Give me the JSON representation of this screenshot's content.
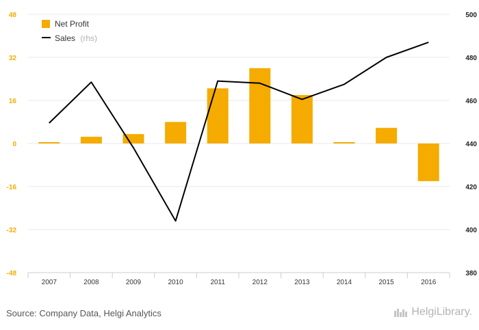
{
  "chart_data": {
    "type": "bar+line",
    "categories": [
      "2007",
      "2008",
      "2009",
      "2010",
      "2011",
      "2012",
      "2013",
      "2014",
      "2015",
      "2016"
    ],
    "series": [
      {
        "name": "Net Profit",
        "type": "bar",
        "axis": "left",
        "color": "#f5ab00",
        "values": [
          0.5,
          2.5,
          3.5,
          8.0,
          20.5,
          28.0,
          18.0,
          0.5,
          5.8,
          -14.0
        ]
      },
      {
        "name": "Sales",
        "type": "line",
        "axis": "right",
        "color": "#000000",
        "values": [
          449.5,
          468.5,
          438.0,
          404.0,
          469.0,
          468.0,
          460.5,
          467.5,
          480.0,
          487.0
        ]
      }
    ],
    "left_axis": {
      "min": -48,
      "max": 48,
      "ticks": [
        "48",
        "32",
        "16",
        "0",
        "-16",
        "-32",
        "-48"
      ],
      "tick_color": "#f5ab00"
    },
    "right_axis": {
      "min": 380,
      "max": 500,
      "ticks": [
        "500",
        "480",
        "460",
        "440",
        "420",
        "400",
        "380"
      ]
    },
    "legend": [
      {
        "label": "Net Profit",
        "suffix": ""
      },
      {
        "label": "Sales",
        "suffix": "(rhs)"
      }
    ],
    "legend_position": "top-left",
    "grid": true
  },
  "footer": {
    "source": "Source: Company Data, Helgi Analytics",
    "brand": "HelgiLibrary."
  }
}
